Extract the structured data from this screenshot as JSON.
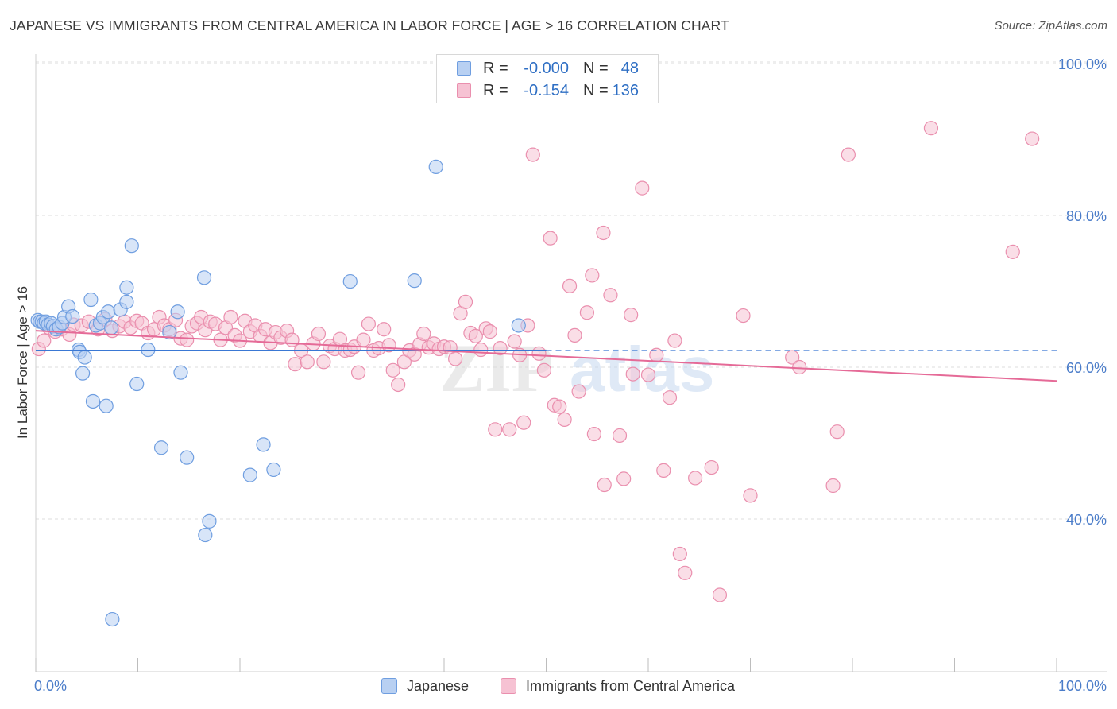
{
  "title": "JAPANESE VS IMMIGRANTS FROM CENTRAL AMERICA IN LABOR FORCE | AGE > 16 CORRELATION CHART",
  "source": "Source: ZipAtlas.com",
  "watermark": {
    "zip": "ZIP",
    "atlas": "atlas"
  },
  "colors": {
    "blue_fill": "#b8d0f2",
    "blue_stroke": "#6f9ee0",
    "blue_line": "#3a78d4",
    "pink_fill": "#f6c2d3",
    "pink_stroke": "#ea8fae",
    "pink_line": "#e56a97",
    "grid": "#dcdcdc",
    "tick_label": "#4a7cc9"
  },
  "stats": [
    {
      "series": "Japanese",
      "r_label": "R =",
      "r_value": "-0.000",
      "n_label": "N =",
      "n_value": "48"
    },
    {
      "series": "Immigrants from Central America",
      "r_label": "R =",
      "r_value": "-0.154",
      "n_label": "N =",
      "n_value": "136"
    }
  ],
  "legend": [
    "Japanese",
    "Immigrants from Central America"
  ],
  "chart_data": {
    "type": "scatter",
    "title": "JAPANESE VS IMMIGRANTS FROM CENTRAL AMERICA IN LABOR FORCE | AGE > 16 CORRELATION CHART",
    "xlabel": "",
    "ylabel": "In Labor Force | Age > 16",
    "xlim": [
      0,
      100
    ],
    "ylim": [
      21,
      100
    ],
    "x_tick_labels": [
      "0.0%",
      "100.0%"
    ],
    "y_ticks": [
      40,
      60,
      80,
      100
    ],
    "y_tick_labels": [
      "40.0%",
      "60.0%",
      "80.0%",
      "100.0%"
    ],
    "grid": true,
    "legend_position": "bottom",
    "series": [
      {
        "name": "Japanese",
        "trend": {
          "x": [
            0,
            50
          ],
          "y": [
            62.2,
            62.2
          ],
          "dashed_extension_to": 100
        },
        "points": [
          {
            "x": 0.2,
            "y": 66.2
          },
          {
            "x": 0.4,
            "y": 66.0
          },
          {
            "x": 0.6,
            "y": 66.0
          },
          {
            "x": 0.8,
            "y": 65.8
          },
          {
            "x": 1.0,
            "y": 66.0
          },
          {
            "x": 1.2,
            "y": 65.6
          },
          {
            "x": 1.5,
            "y": 65.8
          },
          {
            "x": 1.7,
            "y": 65.4
          },
          {
            "x": 2.0,
            "y": 65.0
          },
          {
            "x": 2.3,
            "y": 65.3
          },
          {
            "x": 2.6,
            "y": 65.8
          },
          {
            "x": 2.8,
            "y": 66.6
          },
          {
            "x": 3.2,
            "y": 68.0
          },
          {
            "x": 3.6,
            "y": 66.7
          },
          {
            "x": 4.2,
            "y": 62.3
          },
          {
            "x": 4.3,
            "y": 62.0
          },
          {
            "x": 4.6,
            "y": 59.2
          },
          {
            "x": 4.8,
            "y": 61.3
          },
          {
            "x": 5.4,
            "y": 68.9
          },
          {
            "x": 5.6,
            "y": 55.5
          },
          {
            "x": 5.9,
            "y": 65.5
          },
          {
            "x": 6.3,
            "y": 65.8
          },
          {
            "x": 6.6,
            "y": 66.6
          },
          {
            "x": 6.9,
            "y": 54.9
          },
          {
            "x": 7.1,
            "y": 67.3
          },
          {
            "x": 7.4,
            "y": 65.2
          },
          {
            "x": 7.5,
            "y": 26.8
          },
          {
            "x": 8.3,
            "y": 67.6
          },
          {
            "x": 8.9,
            "y": 70.5
          },
          {
            "x": 8.9,
            "y": 68.6
          },
          {
            "x": 9.4,
            "y": 76.0
          },
          {
            "x": 9.9,
            "y": 57.8
          },
          {
            "x": 11.0,
            "y": 62.3
          },
          {
            "x": 12.3,
            "y": 49.4
          },
          {
            "x": 13.1,
            "y": 64.6
          },
          {
            "x": 13.9,
            "y": 67.3
          },
          {
            "x": 14.2,
            "y": 59.3
          },
          {
            "x": 14.8,
            "y": 48.1
          },
          {
            "x": 16.5,
            "y": 71.8
          },
          {
            "x": 16.6,
            "y": 37.9
          },
          {
            "x": 17.0,
            "y": 39.7
          },
          {
            "x": 21.0,
            "y": 45.8
          },
          {
            "x": 22.3,
            "y": 49.8
          },
          {
            "x": 23.3,
            "y": 46.5
          },
          {
            "x": 30.8,
            "y": 71.3
          },
          {
            "x": 37.1,
            "y": 71.4
          },
          {
            "x": 39.2,
            "y": 86.4
          },
          {
            "x": 47.3,
            "y": 65.5
          }
        ]
      },
      {
        "name": "Immigrants from Central America",
        "trend": {
          "x": [
            0,
            100
          ],
          "y": [
            64.8,
            58.2
          ]
        },
        "points": [
          {
            "x": 0.3,
            "y": 62.4
          },
          {
            "x": 0.8,
            "y": 63.5
          },
          {
            "x": 1.3,
            "y": 65.2
          },
          {
            "x": 1.9,
            "y": 64.7
          },
          {
            "x": 2.5,
            "y": 65.0
          },
          {
            "x": 3.3,
            "y": 64.3
          },
          {
            "x": 3.7,
            "y": 65.6
          },
          {
            "x": 4.5,
            "y": 65.5
          },
          {
            "x": 5.2,
            "y": 66.0
          },
          {
            "x": 6.1,
            "y": 65.0
          },
          {
            "x": 6.8,
            "y": 66.3
          },
          {
            "x": 7.5,
            "y": 64.8
          },
          {
            "x": 8.2,
            "y": 65.4
          },
          {
            "x": 8.7,
            "y": 66.0
          },
          {
            "x": 9.3,
            "y": 65.2
          },
          {
            "x": 9.9,
            "y": 66.1
          },
          {
            "x": 10.4,
            "y": 65.8
          },
          {
            "x": 11.0,
            "y": 64.5
          },
          {
            "x": 11.6,
            "y": 65.0
          },
          {
            "x": 12.1,
            "y": 66.6
          },
          {
            "x": 12.6,
            "y": 65.5
          },
          {
            "x": 13.1,
            "y": 65.0
          },
          {
            "x": 13.7,
            "y": 66.2
          },
          {
            "x": 14.2,
            "y": 63.8
          },
          {
            "x": 14.8,
            "y": 63.6
          },
          {
            "x": 15.3,
            "y": 65.4
          },
          {
            "x": 15.8,
            "y": 65.8
          },
          {
            "x": 16.2,
            "y": 66.6
          },
          {
            "x": 16.6,
            "y": 64.9
          },
          {
            "x": 17.1,
            "y": 66.0
          },
          {
            "x": 17.6,
            "y": 65.7
          },
          {
            "x": 18.1,
            "y": 63.6
          },
          {
            "x": 18.6,
            "y": 65.2
          },
          {
            "x": 19.1,
            "y": 66.6
          },
          {
            "x": 19.5,
            "y": 64.2
          },
          {
            "x": 20.0,
            "y": 63.5
          },
          {
            "x": 20.5,
            "y": 66.1
          },
          {
            "x": 21.0,
            "y": 64.7
          },
          {
            "x": 21.5,
            "y": 65.5
          },
          {
            "x": 22.0,
            "y": 64.1
          },
          {
            "x": 22.5,
            "y": 65.0
          },
          {
            "x": 23.0,
            "y": 63.2
          },
          {
            "x": 23.5,
            "y": 64.6
          },
          {
            "x": 24.0,
            "y": 63.9
          },
          {
            "x": 24.6,
            "y": 64.8
          },
          {
            "x": 25.1,
            "y": 63.6
          },
          {
            "x": 25.4,
            "y": 60.4
          },
          {
            "x": 26.0,
            "y": 62.2
          },
          {
            "x": 26.6,
            "y": 60.7
          },
          {
            "x": 27.2,
            "y": 63.1
          },
          {
            "x": 27.7,
            "y": 64.4
          },
          {
            "x": 28.2,
            "y": 60.7
          },
          {
            "x": 28.8,
            "y": 62.8
          },
          {
            "x": 29.3,
            "y": 62.4
          },
          {
            "x": 29.8,
            "y": 63.7
          },
          {
            "x": 30.3,
            "y": 62.2
          },
          {
            "x": 30.8,
            "y": 62.3
          },
          {
            "x": 31.2,
            "y": 62.7
          },
          {
            "x": 31.6,
            "y": 59.3
          },
          {
            "x": 32.1,
            "y": 63.6
          },
          {
            "x": 32.6,
            "y": 65.7
          },
          {
            "x": 33.1,
            "y": 62.2
          },
          {
            "x": 33.6,
            "y": 62.5
          },
          {
            "x": 34.1,
            "y": 65.0
          },
          {
            "x": 34.6,
            "y": 62.9
          },
          {
            "x": 35.0,
            "y": 59.6
          },
          {
            "x": 35.5,
            "y": 57.7
          },
          {
            "x": 36.1,
            "y": 60.7
          },
          {
            "x": 36.6,
            "y": 62.2
          },
          {
            "x": 37.1,
            "y": 61.7
          },
          {
            "x": 37.6,
            "y": 63.0
          },
          {
            "x": 38.0,
            "y": 64.4
          },
          {
            "x": 38.5,
            "y": 62.6
          },
          {
            "x": 39.0,
            "y": 63.1
          },
          {
            "x": 39.5,
            "y": 62.4
          },
          {
            "x": 40.0,
            "y": 62.7
          },
          {
            "x": 40.6,
            "y": 62.6
          },
          {
            "x": 41.1,
            "y": 61.1
          },
          {
            "x": 41.6,
            "y": 67.1
          },
          {
            "x": 42.1,
            "y": 68.6
          },
          {
            "x": 42.6,
            "y": 64.5
          },
          {
            "x": 43.1,
            "y": 64.1
          },
          {
            "x": 43.6,
            "y": 62.3
          },
          {
            "x": 44.1,
            "y": 65.1
          },
          {
            "x": 44.5,
            "y": 64.7
          },
          {
            "x": 45.0,
            "y": 51.8
          },
          {
            "x": 45.5,
            "y": 62.5
          },
          {
            "x": 46.4,
            "y": 51.8
          },
          {
            "x": 46.9,
            "y": 63.4
          },
          {
            "x": 47.4,
            "y": 61.6
          },
          {
            "x": 47.8,
            "y": 52.7
          },
          {
            "x": 48.2,
            "y": 65.5
          },
          {
            "x": 48.7,
            "y": 88.0
          },
          {
            "x": 49.3,
            "y": 61.8
          },
          {
            "x": 49.8,
            "y": 59.6
          },
          {
            "x": 50.4,
            "y": 77.0
          },
          {
            "x": 50.8,
            "y": 55.0
          },
          {
            "x": 51.3,
            "y": 54.8
          },
          {
            "x": 51.8,
            "y": 53.1
          },
          {
            "x": 52.3,
            "y": 70.7
          },
          {
            "x": 52.8,
            "y": 64.2
          },
          {
            "x": 53.2,
            "y": 56.8
          },
          {
            "x": 54.0,
            "y": 67.2
          },
          {
            "x": 54.5,
            "y": 72.1
          },
          {
            "x": 54.7,
            "y": 51.2
          },
          {
            "x": 55.6,
            "y": 77.7
          },
          {
            "x": 55.7,
            "y": 44.5
          },
          {
            "x": 56.3,
            "y": 69.5
          },
          {
            "x": 57.2,
            "y": 51.0
          },
          {
            "x": 57.6,
            "y": 45.3
          },
          {
            "x": 58.3,
            "y": 66.9
          },
          {
            "x": 58.5,
            "y": 59.1
          },
          {
            "x": 59.4,
            "y": 83.6
          },
          {
            "x": 60.0,
            "y": 59.0
          },
          {
            "x": 60.8,
            "y": 61.6
          },
          {
            "x": 61.5,
            "y": 46.4
          },
          {
            "x": 62.1,
            "y": 56.0
          },
          {
            "x": 62.6,
            "y": 63.5
          },
          {
            "x": 63.1,
            "y": 35.4
          },
          {
            "x": 63.6,
            "y": 32.9
          },
          {
            "x": 64.6,
            "y": 45.4
          },
          {
            "x": 66.2,
            "y": 46.8
          },
          {
            "x": 67.0,
            "y": 30.0
          },
          {
            "x": 69.3,
            "y": 66.8
          },
          {
            "x": 70.0,
            "y": 43.1
          },
          {
            "x": 74.1,
            "y": 61.3
          },
          {
            "x": 74.8,
            "y": 60.0
          },
          {
            "x": 78.1,
            "y": 44.4
          },
          {
            "x": 78.5,
            "y": 51.5
          },
          {
            "x": 79.6,
            "y": 88.0
          },
          {
            "x": 87.7,
            "y": 91.5
          },
          {
            "x": 95.7,
            "y": 75.2
          },
          {
            "x": 97.6,
            "y": 90.1
          }
        ]
      }
    ]
  }
}
